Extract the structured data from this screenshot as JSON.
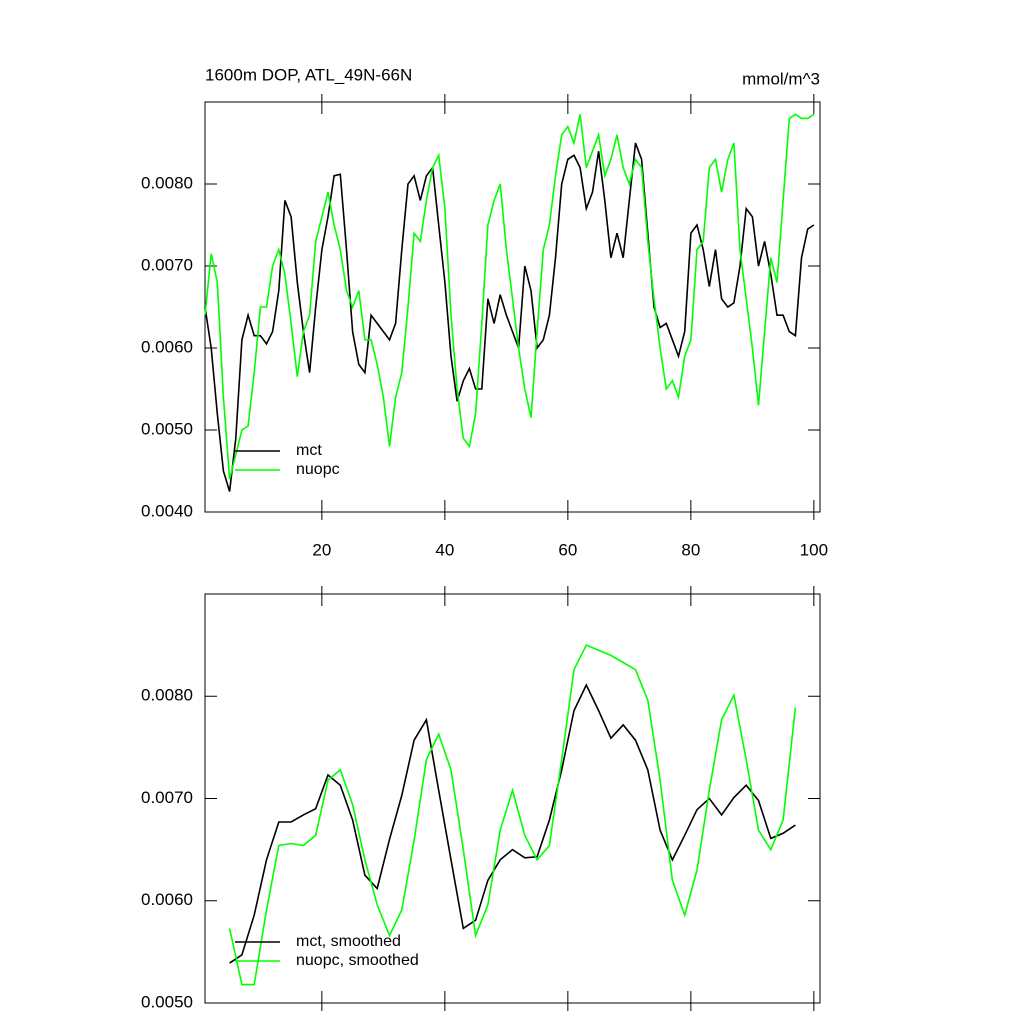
{
  "chart_data": [
    {
      "type": "line",
      "title": "1600m DOP, ATL_49N-66N",
      "units": "mmol/m^3",
      "x": [
        1,
        2,
        3,
        4,
        5,
        6,
        7,
        8,
        9,
        10,
        11,
        12,
        13,
        14,
        15,
        16,
        17,
        18,
        19,
        20,
        21,
        22,
        23,
        24,
        25,
        26,
        27,
        28,
        29,
        30,
        31,
        32,
        33,
        34,
        35,
        36,
        37,
        38,
        39,
        40,
        41,
        42,
        43,
        44,
        45,
        46,
        47,
        48,
        49,
        50,
        51,
        52,
        53,
        54,
        55,
        56,
        57,
        58,
        59,
        60,
        61,
        62,
        63,
        64,
        65,
        66,
        67,
        68,
        69,
        70,
        71,
        72,
        73,
        74,
        75,
        76,
        77,
        78,
        79,
        80,
        81,
        82,
        83,
        84,
        85,
        86,
        87,
        88,
        89,
        90,
        91,
        92,
        93,
        94,
        95,
        96,
        97,
        98,
        99,
        100
      ],
      "series": [
        {
          "name": "mct",
          "color": "#000000",
          "values": [
            0.0065,
            0.006,
            0.0052,
            0.0045,
            0.00425,
            0.0049,
            0.0061,
            0.0064,
            0.00615,
            0.00615,
            0.00605,
            0.0062,
            0.0067,
            0.0078,
            0.0076,
            0.0068,
            0.0062,
            0.0057,
            0.0065,
            0.0072,
            0.0076,
            0.0081,
            0.00812,
            0.0072,
            0.0062,
            0.0058,
            0.0057,
            0.0064,
            0.0063,
            0.0062,
            0.0061,
            0.0063,
            0.0072,
            0.008,
            0.0081,
            0.0078,
            0.0081,
            0.0082,
            0.0075,
            0.0068,
            0.0059,
            0.00535,
            0.0056,
            0.00575,
            0.0055,
            0.0055,
            0.0066,
            0.0063,
            0.00665,
            0.0064,
            0.0062,
            0.006,
            0.007,
            0.0067,
            0.006,
            0.0061,
            0.0064,
            0.0071,
            0.008,
            0.0083,
            0.00835,
            0.0082,
            0.0077,
            0.0079,
            0.0084,
            0.0078,
            0.0071,
            0.0074,
            0.0071,
            0.0078,
            0.0085,
            0.0083,
            0.0074,
            0.0065,
            0.00625,
            0.0063,
            0.0061,
            0.0059,
            0.0062,
            0.0074,
            0.0075,
            0.0072,
            0.00675,
            0.0072,
            0.0066,
            0.0065,
            0.00655,
            0.007,
            0.0077,
            0.0076,
            0.007,
            0.0073,
            0.0069,
            0.0064,
            0.0064,
            0.0062,
            0.00615,
            0.0071,
            0.00745,
            0.0075
          ]
        },
        {
          "name": "nuopc",
          "color": "#00ff00",
          "values": [
            0.0064,
            0.00715,
            0.0068,
            0.0054,
            0.0044,
            0.0047,
            0.005,
            0.00505,
            0.0057,
            0.0065,
            0.0065,
            0.007,
            0.0072,
            0.0069,
            0.0063,
            0.00565,
            0.0062,
            0.0064,
            0.0073,
            0.0076,
            0.0079,
            0.0075,
            0.0072,
            0.0067,
            0.0065,
            0.0067,
            0.0061,
            0.0061,
            0.0058,
            0.0054,
            0.0048,
            0.0054,
            0.0057,
            0.0065,
            0.0074,
            0.0073,
            0.0078,
            0.0082,
            0.00835,
            0.0077,
            0.0064,
            0.0055,
            0.0049,
            0.0048,
            0.0052,
            0.0063,
            0.0075,
            0.0078,
            0.008,
            0.0072,
            0.0066,
            0.006,
            0.0055,
            0.00515,
            0.0062,
            0.0072,
            0.0075,
            0.0081,
            0.0086,
            0.0087,
            0.0085,
            0.00885,
            0.0082,
            0.0084,
            0.0086,
            0.0081,
            0.0083,
            0.0086,
            0.0082,
            0.008,
            0.0083,
            0.0082,
            0.0073,
            0.0066,
            0.006,
            0.0055,
            0.0056,
            0.0054,
            0.0059,
            0.0061,
            0.0072,
            0.0073,
            0.0082,
            0.0083,
            0.0079,
            0.0083,
            0.0085,
            0.0072,
            0.0066,
            0.006,
            0.0053,
            0.0062,
            0.0071,
            0.0068,
            0.0078,
            0.0088,
            0.00885,
            0.0088,
            0.0088,
            0.00885
          ]
        }
      ],
      "xlim": [
        1,
        101
      ],
      "xticks": [
        20,
        40,
        60,
        80,
        100
      ],
      "ylim": [
        0.004,
        0.009
      ],
      "yticks": [
        {
          "value": 0.004,
          "label": "0.0040"
        },
        {
          "value": 0.005,
          "label": "0.0050"
        },
        {
          "value": 0.006,
          "label": "0.0060"
        },
        {
          "value": 0.007,
          "label": "0.0070"
        },
        {
          "value": 0.008,
          "label": "0.0080"
        }
      ],
      "legend": "lower left"
    },
    {
      "type": "line",
      "x": [
        5,
        7,
        9,
        11,
        13,
        15,
        17,
        19,
        21,
        23,
        25,
        27,
        29,
        31,
        33,
        35,
        37,
        39,
        41,
        43,
        45,
        47,
        49,
        51,
        53,
        55,
        57,
        59,
        61,
        63,
        65,
        67,
        69,
        71,
        73,
        75,
        77,
        79,
        81,
        83,
        85,
        87,
        89,
        91,
        93,
        95,
        97
      ],
      "series": [
        {
          "name": "mct, smoothed",
          "color": "#000000",
          "values": [
            0.00539,
            0.00547,
            0.00586,
            0.0064,
            0.00677,
            0.00677,
            0.00684,
            0.0069,
            0.00723,
            0.00713,
            0.00679,
            0.00625,
            0.00612,
            0.0066,
            0.00703,
            0.00757,
            0.00777,
            0.00708,
            0.0064,
            0.00573,
            0.00581,
            0.0062,
            0.0064,
            0.0065,
            0.00642,
            0.00643,
            0.00679,
            0.00728,
            0.00786,
            0.00811,
            0.00786,
            0.00759,
            0.00772,
            0.00757,
            0.00728,
            0.00669,
            0.0064,
            0.00664,
            0.00689,
            0.007,
            0.00684,
            0.00701,
            0.00713,
            0.00698,
            0.00661,
            0.00666,
            0.00674
          ]
        },
        {
          "name": "nuopc, smoothed",
          "color": "#00ff00",
          "values": [
            0.00573,
            0.00518,
            0.00518,
            0.00591,
            0.00654,
            0.00656,
            0.00654,
            0.00664,
            0.00718,
            0.00728,
            0.00694,
            0.0064,
            0.00596,
            0.00566,
            0.00591,
            0.00659,
            0.00738,
            0.00763,
            0.00728,
            0.0065,
            0.00566,
            0.00596,
            0.00669,
            0.00708,
            0.00664,
            0.0064,
            0.00654,
            0.00738,
            0.00826,
            0.0085,
            0.00845,
            0.0084,
            0.00833,
            0.00826,
            0.00796,
            0.00718,
            0.0062,
            0.00586,
            0.0063,
            0.00708,
            0.00777,
            0.00801,
            0.00738,
            0.00669,
            0.0065,
            0.00679,
            0.00789
          ]
        }
      ],
      "xlim": [
        1,
        101
      ],
      "xticks": [
        20,
        40,
        60,
        80,
        100
      ],
      "ylim": [
        0.005,
        0.009
      ],
      "yticks": [
        {
          "value": 0.005,
          "label": "0.0050"
        },
        {
          "value": 0.006,
          "label": "0.0060"
        },
        {
          "value": 0.007,
          "label": "0.0070"
        },
        {
          "value": 0.008,
          "label": "0.0080"
        }
      ],
      "legend": "lower left"
    }
  ]
}
